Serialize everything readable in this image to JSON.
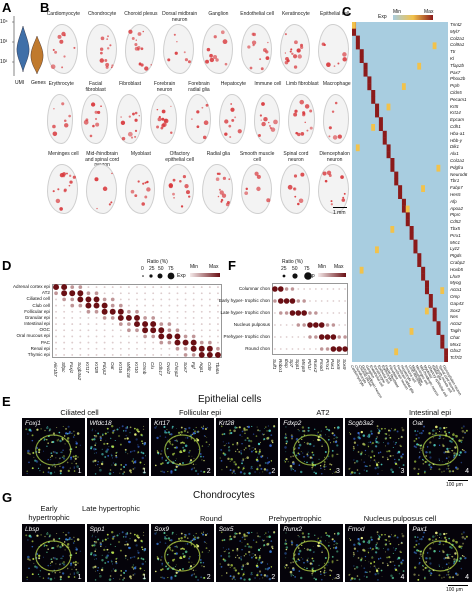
{
  "panels": {
    "A": "A",
    "B": "B",
    "C": "C",
    "D": "D",
    "E": "E",
    "F": "F",
    "G": "G"
  },
  "panel_a": {
    "y_ticks": [
      "10⁴",
      "10³",
      "10²"
    ],
    "x_labels": [
      "UMI",
      "Genes"
    ],
    "colors": {
      "umi": "#3f6fa8",
      "genes": "#c07a2e"
    }
  },
  "panel_b": {
    "row1": [
      "Cardiomyocyte",
      "Chondrocyte",
      "Choroid plexus",
      "Dorsal midbrain neuron",
      "Ganglion",
      "Endothelial cell",
      "Keratinocyte",
      "Epithelial cell"
    ],
    "row2": [
      "Erythrocyte",
      "Facial fibroblast",
      "Fibroblast",
      "Forebrain neuron",
      "Forebrain radial glia",
      "Hepatocyte",
      "Immune cell",
      "Limb fibroblast",
      "Macrophage"
    ],
    "row3": [
      "Meninges cell",
      "Mid-/hindbrain and spinal cord neuron",
      "Myoblast",
      "Olfactory epithelial cell",
      "Radial glia",
      "Smooth muscle cell",
      "Spinal cord neuron",
      "Diencephalon neuron"
    ],
    "scale_bar": "1 mm",
    "highlight_color": "#d8373b"
  },
  "panel_c": {
    "legend": {
      "label": "Exp",
      "min": "Min",
      "max": "Max"
    },
    "genes": [
      "Tnnt2",
      "Myl7",
      "Col2a1",
      "Col9a1",
      "Ttr",
      "Kl",
      "Tfap2b",
      "Pax7",
      "Phox2b",
      "Prph",
      "Cldn5",
      "Pecam1",
      "Krt5",
      "Krt14",
      "Epcam",
      "Cdh1",
      "Hba-a1",
      "Hbb-y",
      "Dlk1",
      "Alx1",
      "Col1a1",
      "Pdgfra",
      "Neurod6",
      "Tbr1",
      "Fabp7",
      "Hes5",
      "Afp",
      "Apoa2",
      "Ptprc",
      "Cd52",
      "Tbx5",
      "Prrx1",
      "Mrc1",
      "Lyz2",
      "Ptgds",
      "Crabp2",
      "Hoxb5",
      "Lhx9",
      "Myog",
      "Acta1",
      "Omp",
      "Gap43",
      "Sox2",
      "Nes",
      "Acta2",
      "Tagln",
      "Chat",
      "Mnx1",
      "Gbx2",
      "Tcf7l2"
    ],
    "cell_types": [
      "Cardiomyocyte",
      "Chondrocyte",
      "Choroid plexus",
      "Dorsal midbrain neuron",
      "Ganglion",
      "Endothelial cell",
      "Keratinocyte",
      "Epithelial cell",
      "Erythrocyte",
      "Facial fibroblast",
      "Fibroblast",
      "Forebrain neuron",
      "Forebrain radial glia",
      "Hepatocyte",
      "Immune cell",
      "Limb fibroblast",
      "Macrophage",
      "Meninges cell",
      "Mid-/hindbrain neuron",
      "Myoblast",
      "Olfactory epithelial cell",
      "Radial glia",
      "Smooth muscle cell",
      "Spinal cord neuron",
      "Diencephalon neuron"
    ],
    "colors": {
      "low": "#a8cde0",
      "mid": "#f2c24b",
      "high": "#8b1a1a"
    }
  },
  "panel_d": {
    "title_ratio": "Ratio (%)",
    "ratio_ticks": [
      "0",
      "25",
      "50",
      "75"
    ],
    "exp": {
      "label": "Exp",
      "min": "Min",
      "max": "Max"
    },
    "rows": [
      "Adrenal cortex epi",
      "AT2",
      "Ciliated cell",
      "Club cell",
      "Follicular epi",
      "Granular epi",
      "Intestinal epi",
      "OGC",
      "Oral mucous epi",
      "PAC",
      "Renal epi",
      "Thymic epi"
    ],
    "genes": [
      "Akr1b7",
      "Sftpc",
      "Foxj1",
      "Scgb3a2",
      "Krt17",
      "Krt28",
      "Fdxp2",
      "Oat",
      "Krt16",
      "Wfdc18",
      "Krt10",
      "Ctnnb",
      "Clu",
      "Cdh17",
      "Ovol2",
      "Chmp2",
      "Sox7",
      "Fgf",
      "Aqp1",
      "Cd9",
      "Tbata"
    ]
  },
  "panel_f": {
    "title_ratio": "Ratio (%)",
    "ratio_ticks": [
      "25",
      "50",
      "75"
    ],
    "exp": {
      "label": "Exp",
      "min": "Min",
      "max": "Max"
    },
    "rows": [
      "Columnar chon",
      "Early hyper- trophic chon",
      "Late hyper- trophic chon",
      "Nucleus pulposus",
      "Prehyper- trophic chon",
      "Round chon"
    ],
    "genes": [
      "Sulf1",
      "Robo1",
      "Ibsp",
      "Sp7",
      "Spp1",
      "Mmp9",
      "Pth1r",
      "Runx2",
      "Fmod",
      "Prrx1",
      "Pax1",
      "Sox5",
      "Sox9"
    ]
  },
  "panel_e": {
    "title": "Epithelial cells",
    "groups": [
      "Ciliated cell",
      "Follicular epi",
      "AT2",
      "Intestinal epi"
    ],
    "tiles": [
      {
        "gene": "Foxj1",
        "num": "1"
      },
      {
        "gene": "Wfdc18",
        "num": "1"
      },
      {
        "gene": "Krt17",
        "num": "2"
      },
      {
        "gene": "Krt28",
        "num": "2"
      },
      {
        "gene": "Fdxp2",
        "num": "3"
      },
      {
        "gene": "Scgb3a2",
        "num": "3"
      },
      {
        "gene": "Oat",
        "num": "4"
      }
    ],
    "scale": "100 μm"
  },
  "panel_g": {
    "title": "Chondrocytes",
    "groups": [
      "Early hypertrophic",
      "Late hypertrophic",
      "Round",
      "Prehypertrophic",
      "Nucleus pulposus cell"
    ],
    "tiles": [
      {
        "gene": "Lbsp",
        "num": "1"
      },
      {
        "gene": "Spp1",
        "num": "1"
      },
      {
        "gene": "Sox9",
        "num": "2"
      },
      {
        "gene": "Sox5",
        "num": "2"
      },
      {
        "gene": "Runx2",
        "num": "3"
      },
      {
        "gene": "Fmod",
        "num": "4"
      },
      {
        "gene": "Pax1",
        "num": "4"
      }
    ],
    "scale": "100 μm"
  }
}
